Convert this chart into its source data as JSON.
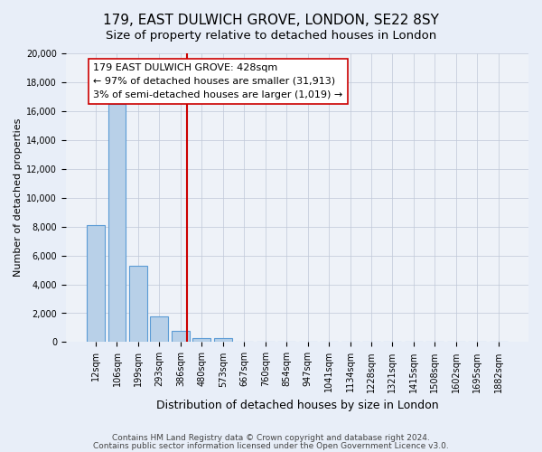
{
  "title": "179, EAST DULWICH GROVE, LONDON, SE22 8SY",
  "subtitle": "Size of property relative to detached houses in London",
  "bar_heights": [
    8100,
    16500,
    5300,
    1800,
    800,
    300,
    250,
    0,
    0,
    0,
    0,
    0,
    0,
    0,
    0,
    0,
    0,
    0,
    0,
    0
  ],
  "bar_labels": [
    "12sqm",
    "106sqm",
    "199sqm",
    "293sqm",
    "386sqm",
    "480sqm",
    "573sqm",
    "667sqm",
    "760sqm",
    "854sqm",
    "947sqm",
    "1041sqm",
    "1134sqm",
    "1228sqm",
    "1321sqm",
    "1415sqm",
    "1508sqm",
    "1602sqm",
    "1695sqm",
    "1882sqm"
  ],
  "bar_color": "#b8d0e8",
  "bar_edge_color": "#5b9bd5",
  "bar_edge_width": 0.8,
  "ylabel": "Number of detached properties",
  "xlabel": "Distribution of detached houses by size in London",
  "ylim": [
    0,
    20000
  ],
  "yticks": [
    0,
    2000,
    4000,
    6000,
    8000,
    10000,
    12000,
    14000,
    16000,
    18000,
    20000
  ],
  "property_line_x": 4.3,
  "property_line_color": "#cc0000",
  "annotation_line1": "179 EAST DULWICH GROVE: 428sqm",
  "annotation_line2": "← 97% of detached houses are smaller (31,913)",
  "annotation_line3": "3% of semi-detached houses are larger (1,019) →",
  "grid_color": "#c0c8d8",
  "background_color": "#e8eef8",
  "plot_bg_color": "#eef2f8",
  "footer_line1": "Contains HM Land Registry data © Crown copyright and database right 2024.",
  "footer_line2": "Contains public sector information licensed under the Open Government Licence v3.0.",
  "title_fontsize": 11,
  "subtitle_fontsize": 9.5,
  "xlabel_fontsize": 9,
  "ylabel_fontsize": 8,
  "tick_fontsize": 7,
  "annotation_fontsize": 8,
  "footer_fontsize": 6.5
}
